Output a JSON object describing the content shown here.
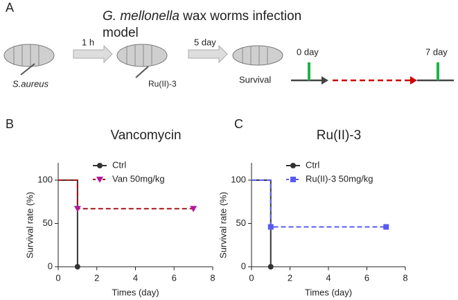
{
  "panel_a": {
    "label": "A",
    "title_italic": "G. mellonella",
    "title_rest": " wax worms infection model",
    "step1": "1 h",
    "step2": "5 day",
    "pathogen": "S.aureus",
    "drug": "Ru(II)-3",
    "outcome": "Survival",
    "start": "0 day",
    "end": "7 day"
  },
  "chart_data": [
    {
      "type": "line",
      "panel": "B",
      "title": "Vancomycin",
      "xlabel": "Times (day)",
      "ylabel": "Survival rate (%)",
      "xlim": [
        0,
        8
      ],
      "xticks": [
        0,
        2,
        4,
        6,
        8
      ],
      "ylim": [
        0,
        120
      ],
      "yticks": [
        0,
        50,
        100
      ],
      "series": [
        {
          "name": "Ctrl",
          "color": "#333333",
          "marker": "circle",
          "dashed": false,
          "x": [
            0,
            1,
            1
          ],
          "values": [
            100,
            100,
            0
          ]
        },
        {
          "name": "Van 50mg/kg",
          "color": "#a31515",
          "marker_color": "#b5179e",
          "marker": "triangle",
          "dashed": true,
          "x": [
            0,
            1,
            1,
            7
          ],
          "values": [
            100,
            100,
            67,
            67
          ]
        }
      ]
    },
    {
      "type": "line",
      "panel": "C",
      "title": "Ru(II)-3",
      "xlabel": "Times (day)",
      "ylabel": "Survival rate (%)",
      "xlim": [
        0,
        8
      ],
      "xticks": [
        0,
        2,
        4,
        6,
        8
      ],
      "ylim": [
        0,
        120
      ],
      "yticks": [
        0,
        50,
        100
      ],
      "series": [
        {
          "name": "Ctrl",
          "color": "#333333",
          "marker": "circle",
          "dashed": false,
          "x": [
            0,
            1,
            1
          ],
          "values": [
            100,
            100,
            0
          ]
        },
        {
          "name": "Ru(II)-3 50mg/kg",
          "color": "#5a5af0",
          "marker": "square",
          "dashed": true,
          "x": [
            0,
            1,
            1,
            7
          ],
          "values": [
            100,
            100,
            46,
            46
          ]
        }
      ]
    }
  ]
}
